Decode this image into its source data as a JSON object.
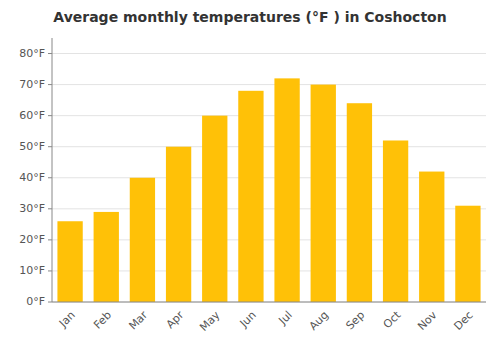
{
  "chart_data": {
    "type": "bar",
    "title": "Average monthly temperatures (°F ) in Coshocton",
    "categories": [
      "Jan",
      "Feb",
      "Mar",
      "Apr",
      "May",
      "Jun",
      "Jul",
      "Aug",
      "Sep",
      "Oct",
      "Nov",
      "Dec"
    ],
    "values": [
      26,
      29,
      40,
      50,
      60,
      68,
      72,
      70,
      64,
      52,
      42,
      31
    ],
    "color": "#FFC107",
    "ylim": [
      0,
      85
    ],
    "yticks": [
      {
        "value": 0,
        "label": "0°F"
      },
      {
        "value": 10,
        "label": "10°F"
      },
      {
        "value": 20,
        "label": "20°F"
      },
      {
        "value": 30,
        "label": "30°F"
      },
      {
        "value": 40,
        "label": "40°F"
      },
      {
        "value": 50,
        "label": "50°F"
      },
      {
        "value": 60,
        "label": "60°F"
      },
      {
        "value": 70,
        "label": "70°F"
      },
      {
        "value": 80,
        "label": "80°F"
      }
    ],
    "grid": true
  }
}
